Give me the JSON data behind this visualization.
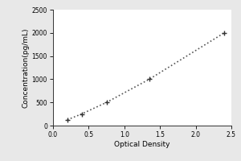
{
  "x_data": [
    0.2,
    0.4,
    0.75,
    1.35,
    2.4
  ],
  "y_data": [
    125,
    250,
    500,
    1000,
    2000
  ],
  "xlabel": "Optical Density",
  "ylabel": "Concentration(pg/mL)",
  "xlim": [
    0,
    2.5
  ],
  "ylim": [
    0,
    2500
  ],
  "xticks": [
    0,
    0.5,
    1,
    1.5,
    2,
    2.5
  ],
  "yticks": [
    0,
    500,
    1000,
    1500,
    2000,
    2500
  ],
  "line_color": "#555555",
  "marker_color": "#333333",
  "outer_bg_color": "#d8d8d8",
  "inner_bg_color": "#e8e8e8",
  "plot_bg_color": "#ffffff",
  "axis_label_fontsize": 6.5,
  "tick_fontsize": 5.5,
  "line_width": 1.0,
  "marker_size": 4,
  "marker_edge_width": 1.0
}
